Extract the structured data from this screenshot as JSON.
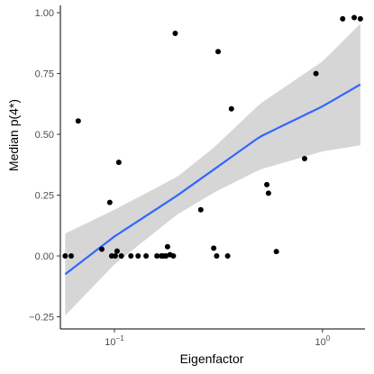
{
  "chart_data": {
    "type": "scatter",
    "title": "",
    "xlabel": "Eigenfactor",
    "ylabel": "Median p(4*)",
    "x_scale": "log10",
    "xlim": [
      0.055,
      1.6
    ],
    "ylim": [
      -0.3,
      1.03
    ],
    "grid": false,
    "x_ticks": [
      {
        "value": 0.1,
        "base": "10",
        "exp": "−1"
      },
      {
        "value": 1,
        "base": "10",
        "exp": "0"
      }
    ],
    "y_ticks": [
      {
        "value": -0.25,
        "label": "−0.25"
      },
      {
        "value": 0.0,
        "label": "0.00"
      },
      {
        "value": 0.25,
        "label": "0.25"
      },
      {
        "value": 0.5,
        "label": "0.50"
      },
      {
        "value": 0.75,
        "label": "0.75"
      },
      {
        "value": 1.0,
        "label": "1.00"
      }
    ],
    "points": [
      {
        "x": 0.058,
        "y": 0.0
      },
      {
        "x": 0.062,
        "y": 0.0
      },
      {
        "x": 0.067,
        "y": 0.555
      },
      {
        "x": 0.087,
        "y": 0.028
      },
      {
        "x": 0.095,
        "y": 0.22
      },
      {
        "x": 0.097,
        "y": 0.0
      },
      {
        "x": 0.101,
        "y": 0.0
      },
      {
        "x": 0.103,
        "y": 0.02
      },
      {
        "x": 0.105,
        "y": 0.385
      },
      {
        "x": 0.108,
        "y": 0.0
      },
      {
        "x": 0.12,
        "y": 0.0
      },
      {
        "x": 0.13,
        "y": 0.0
      },
      {
        "x": 0.142,
        "y": 0.0
      },
      {
        "x": 0.16,
        "y": 0.0
      },
      {
        "x": 0.168,
        "y": 0.0
      },
      {
        "x": 0.172,
        "y": 0.0
      },
      {
        "x": 0.177,
        "y": 0.0
      },
      {
        "x": 0.18,
        "y": 0.038
      },
      {
        "x": 0.185,
        "y": 0.005
      },
      {
        "x": 0.192,
        "y": 0.0
      },
      {
        "x": 0.196,
        "y": 0.915
      },
      {
        "x": 0.26,
        "y": 0.19
      },
      {
        "x": 0.3,
        "y": 0.032
      },
      {
        "x": 0.31,
        "y": 0.0
      },
      {
        "x": 0.315,
        "y": 0.84
      },
      {
        "x": 0.35,
        "y": 0.0
      },
      {
        "x": 0.365,
        "y": 0.605
      },
      {
        "x": 0.54,
        "y": 0.293
      },
      {
        "x": 0.55,
        "y": 0.258
      },
      {
        "x": 0.6,
        "y": 0.018
      },
      {
        "x": 0.82,
        "y": 0.4
      },
      {
        "x": 0.93,
        "y": 0.75
      },
      {
        "x": 1.25,
        "y": 0.975
      },
      {
        "x": 1.42,
        "y": 0.98
      },
      {
        "x": 1.52,
        "y": 0.975
      }
    ],
    "fit": {
      "method": "linear",
      "color": "#3366ff",
      "band_color": "#999999",
      "x_start": 0.058,
      "x_end": 1.52,
      "samples": [
        {
          "x": 0.058,
          "y": -0.075,
          "lo": -0.245,
          "hi": 0.092
        },
        {
          "x": 0.1,
          "y": 0.08,
          "lo": -0.035,
          "hi": 0.19
        },
        {
          "x": 0.2,
          "y": 0.248,
          "lo": 0.17,
          "hi": 0.325
        },
        {
          "x": 0.3,
          "y": 0.355,
          "lo": 0.26,
          "hi": 0.445
        },
        {
          "x": 0.5,
          "y": 0.49,
          "lo": 0.355,
          "hi": 0.625
        },
        {
          "x": 1.0,
          "y": 0.615,
          "lo": 0.43,
          "hi": 0.8
        },
        {
          "x": 1.52,
          "y": 0.705,
          "lo": 0.455,
          "hi": 0.955
        }
      ]
    }
  }
}
